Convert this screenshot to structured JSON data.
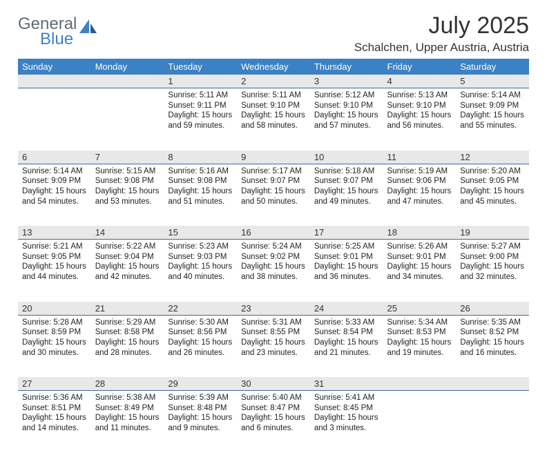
{
  "logo": {
    "general": "General",
    "blue": "Blue"
  },
  "title": "July 2025",
  "location": "Schalchen, Upper Austria, Austria",
  "colors": {
    "header_bg": "#3c81c4",
    "header_text": "#ffffff",
    "daynum_bg": "#e8e8e8",
    "rule": "#3c6a9a",
    "body_text": "#222222",
    "title_text": "#333333",
    "logo_gray": "#5f6b74",
    "logo_blue": "#3c81c4"
  },
  "weekdays": [
    "Sunday",
    "Monday",
    "Tuesday",
    "Wednesday",
    "Thursday",
    "Friday",
    "Saturday"
  ],
  "weeks": [
    [
      null,
      null,
      {
        "n": "1",
        "sr": "5:11 AM",
        "ss": "9:11 PM",
        "dl": "15 hours and 59 minutes."
      },
      {
        "n": "2",
        "sr": "5:11 AM",
        "ss": "9:10 PM",
        "dl": "15 hours and 58 minutes."
      },
      {
        "n": "3",
        "sr": "5:12 AM",
        "ss": "9:10 PM",
        "dl": "15 hours and 57 minutes."
      },
      {
        "n": "4",
        "sr": "5:13 AM",
        "ss": "9:10 PM",
        "dl": "15 hours and 56 minutes."
      },
      {
        "n": "5",
        "sr": "5:14 AM",
        "ss": "9:09 PM",
        "dl": "15 hours and 55 minutes."
      }
    ],
    [
      {
        "n": "6",
        "sr": "5:14 AM",
        "ss": "9:09 PM",
        "dl": "15 hours and 54 minutes."
      },
      {
        "n": "7",
        "sr": "5:15 AM",
        "ss": "9:08 PM",
        "dl": "15 hours and 53 minutes."
      },
      {
        "n": "8",
        "sr": "5:16 AM",
        "ss": "9:08 PM",
        "dl": "15 hours and 51 minutes."
      },
      {
        "n": "9",
        "sr": "5:17 AM",
        "ss": "9:07 PM",
        "dl": "15 hours and 50 minutes."
      },
      {
        "n": "10",
        "sr": "5:18 AM",
        "ss": "9:07 PM",
        "dl": "15 hours and 49 minutes."
      },
      {
        "n": "11",
        "sr": "5:19 AM",
        "ss": "9:06 PM",
        "dl": "15 hours and 47 minutes."
      },
      {
        "n": "12",
        "sr": "5:20 AM",
        "ss": "9:05 PM",
        "dl": "15 hours and 45 minutes."
      }
    ],
    [
      {
        "n": "13",
        "sr": "5:21 AM",
        "ss": "9:05 PM",
        "dl": "15 hours and 44 minutes."
      },
      {
        "n": "14",
        "sr": "5:22 AM",
        "ss": "9:04 PM",
        "dl": "15 hours and 42 minutes."
      },
      {
        "n": "15",
        "sr": "5:23 AM",
        "ss": "9:03 PM",
        "dl": "15 hours and 40 minutes."
      },
      {
        "n": "16",
        "sr": "5:24 AM",
        "ss": "9:02 PM",
        "dl": "15 hours and 38 minutes."
      },
      {
        "n": "17",
        "sr": "5:25 AM",
        "ss": "9:01 PM",
        "dl": "15 hours and 36 minutes."
      },
      {
        "n": "18",
        "sr": "5:26 AM",
        "ss": "9:01 PM",
        "dl": "15 hours and 34 minutes."
      },
      {
        "n": "19",
        "sr": "5:27 AM",
        "ss": "9:00 PM",
        "dl": "15 hours and 32 minutes."
      }
    ],
    [
      {
        "n": "20",
        "sr": "5:28 AM",
        "ss": "8:59 PM",
        "dl": "15 hours and 30 minutes."
      },
      {
        "n": "21",
        "sr": "5:29 AM",
        "ss": "8:58 PM",
        "dl": "15 hours and 28 minutes."
      },
      {
        "n": "22",
        "sr": "5:30 AM",
        "ss": "8:56 PM",
        "dl": "15 hours and 26 minutes."
      },
      {
        "n": "23",
        "sr": "5:31 AM",
        "ss": "8:55 PM",
        "dl": "15 hours and 23 minutes."
      },
      {
        "n": "24",
        "sr": "5:33 AM",
        "ss": "8:54 PM",
        "dl": "15 hours and 21 minutes."
      },
      {
        "n": "25",
        "sr": "5:34 AM",
        "ss": "8:53 PM",
        "dl": "15 hours and 19 minutes."
      },
      {
        "n": "26",
        "sr": "5:35 AM",
        "ss": "8:52 PM",
        "dl": "15 hours and 16 minutes."
      }
    ],
    [
      {
        "n": "27",
        "sr": "5:36 AM",
        "ss": "8:51 PM",
        "dl": "15 hours and 14 minutes."
      },
      {
        "n": "28",
        "sr": "5:38 AM",
        "ss": "8:49 PM",
        "dl": "15 hours and 11 minutes."
      },
      {
        "n": "29",
        "sr": "5:39 AM",
        "ss": "8:48 PM",
        "dl": "15 hours and 9 minutes."
      },
      {
        "n": "30",
        "sr": "5:40 AM",
        "ss": "8:47 PM",
        "dl": "15 hours and 6 minutes."
      },
      {
        "n": "31",
        "sr": "5:41 AM",
        "ss": "8:45 PM",
        "dl": "15 hours and 3 minutes."
      },
      null,
      null
    ]
  ],
  "labels": {
    "sunrise": "Sunrise:",
    "sunset": "Sunset:",
    "daylight": "Daylight:"
  }
}
